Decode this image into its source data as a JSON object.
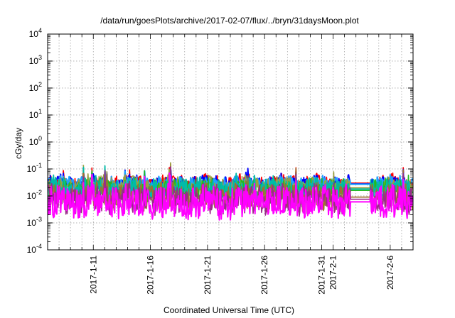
{
  "chart_data": {
    "type": "line",
    "title": "/data/run/goesPlots/archive/2017-02-07/flux/../bryn/31daysMoon.plot",
    "xlabel": "Coordinated Universal Time (UTC)",
    "ylabel": "cGy/day",
    "yscale": "log",
    "ylim": [
      0.0001,
      10000
    ],
    "xlim": [
      "2017-01-07",
      "2017-02-08"
    ],
    "grid": true,
    "y_ticks": [
      {
        "value": 0.0001,
        "base": "10",
        "exp": "-4"
      },
      {
        "value": 0.001,
        "base": "10",
        "exp": "-3"
      },
      {
        "value": 0.01,
        "base": "10",
        "exp": "-2"
      },
      {
        "value": 0.1,
        "base": "10",
        "exp": "-1"
      },
      {
        "value": 1,
        "base": "10",
        "exp": "0"
      },
      {
        "value": 10,
        "base": "10",
        "exp": "1"
      },
      {
        "value": 100,
        "base": "10",
        "exp": "2"
      },
      {
        "value": 1000,
        "base": "10",
        "exp": "3"
      },
      {
        "value": 10000,
        "base": "10",
        "exp": "4"
      }
    ],
    "x_ticks": [
      {
        "date": "2017-01-11",
        "label": "2017-1-11"
      },
      {
        "date": "2017-01-16",
        "label": "2017-1-16"
      },
      {
        "date": "2017-01-21",
        "label": "2017-1-21"
      },
      {
        "date": "2017-01-26",
        "label": "2017-1-26"
      },
      {
        "date": "2017-01-31",
        "label": "2017-1-31"
      },
      {
        "date": "2017-02-01",
        "label": "2017-2-1"
      },
      {
        "date": "2017-02-06",
        "label": "2017-2-6"
      }
    ],
    "gap": {
      "start": "2017-02-02 12:00",
      "end": "2017-02-04 06:00"
    },
    "series": [
      {
        "color": "#ff0000",
        "base": 0.03,
        "amp": 0.15
      },
      {
        "color": "#0000ff",
        "base": 0.028,
        "amp": 0.16
      },
      {
        "color": "#1fa0ff",
        "base": 0.027,
        "amp": 0.15
      },
      {
        "color": "#9aa040",
        "base": 0.02,
        "amp": 0.22
      },
      {
        "color": "#22bb22",
        "base": 0.016,
        "amp": 0.25
      },
      {
        "color": "#00bba8",
        "base": 0.018,
        "amp": 0.25
      },
      {
        "color": "#a07030",
        "base": 0.009,
        "amp": 0.3
      },
      {
        "color": "#9a2a8a",
        "base": 0.0075,
        "amp": 0.32
      },
      {
        "color": "#ff00ff",
        "base": 0.006,
        "amp": 0.36
      }
    ]
  }
}
